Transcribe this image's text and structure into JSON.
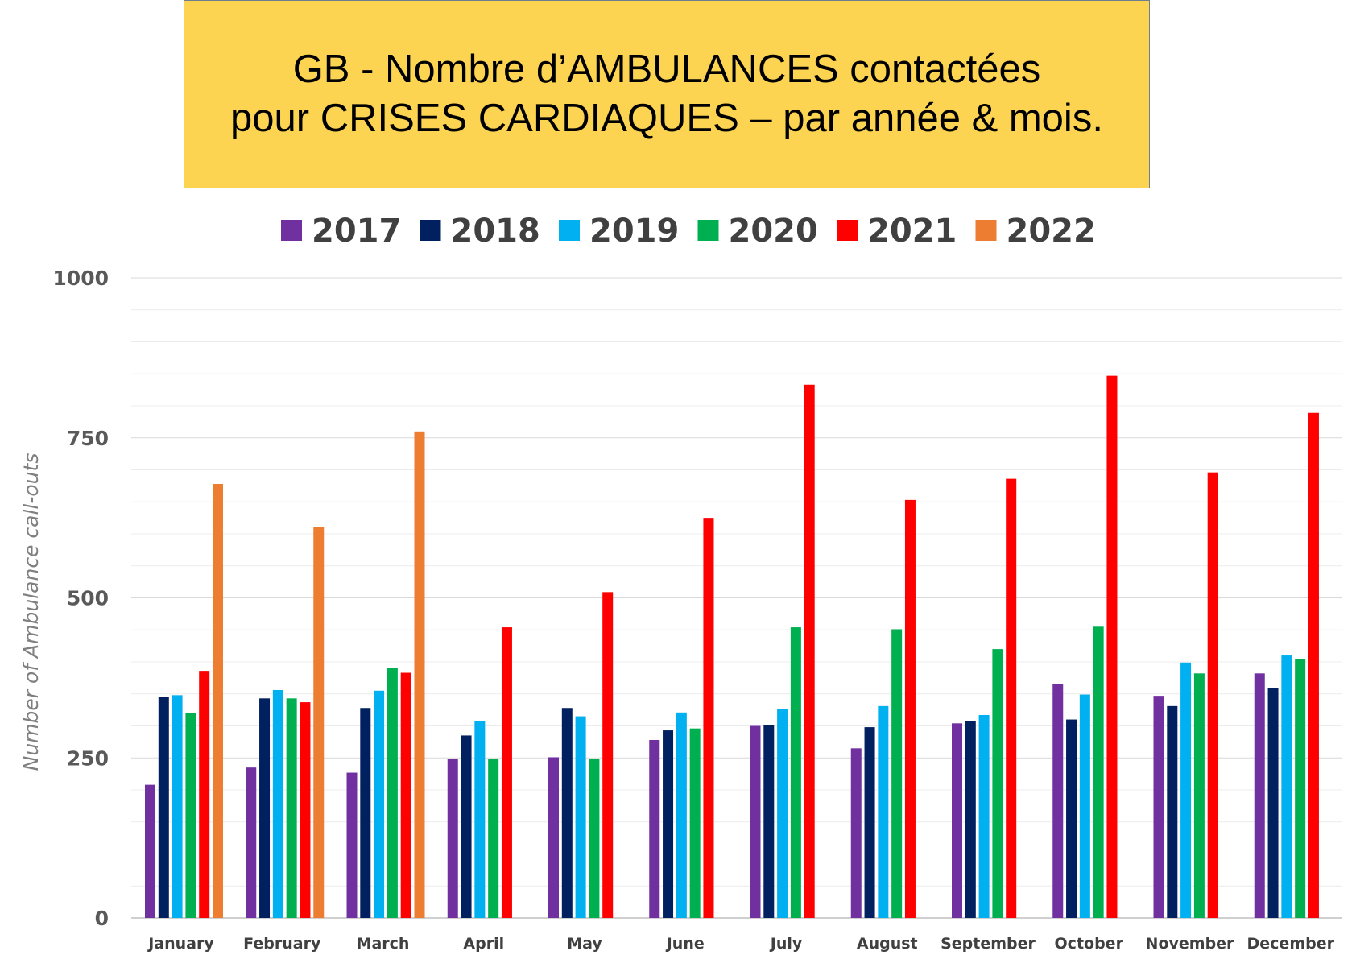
{
  "title": {
    "line1": "GB - Nombre d’AMBULANCES contactées",
    "line2": "pour CRISES CARDIAQUES – par année & mois."
  },
  "chart_data": {
    "type": "bar",
    "ylabel": "Number of Ambulance call-outs",
    "xlabel": "",
    "ylim": [
      0,
      1000
    ],
    "yticks": [
      0,
      250,
      500,
      750,
      1000
    ],
    "grid": true,
    "legend_position": "top",
    "categories": [
      "January",
      "February",
      "March",
      "April",
      "May",
      "June",
      "July",
      "August",
      "September",
      "October",
      "November",
      "December"
    ],
    "series": [
      {
        "name": "2017",
        "color": "#7030a0",
        "values": [
          208,
          235,
          227,
          249,
          251,
          278,
          300,
          265,
          304,
          365,
          347,
          382
        ]
      },
      {
        "name": "2018",
        "color": "#002060",
        "values": [
          345,
          343,
          328,
          285,
          328,
          293,
          301,
          298,
          308,
          310,
          331,
          359
        ]
      },
      {
        "name": "2019",
        "color": "#00b0f0",
        "values": [
          348,
          356,
          355,
          307,
          315,
          321,
          327,
          331,
          317,
          349,
          399,
          410
        ]
      },
      {
        "name": "2020",
        "color": "#00b050",
        "values": [
          320,
          343,
          390,
          249,
          249,
          296,
          454,
          451,
          420,
          455,
          382,
          405
        ]
      },
      {
        "name": "2021",
        "color": "#ff0000",
        "values": [
          386,
          337,
          383,
          454,
          509,
          625,
          833,
          653,
          686,
          847,
          696,
          789
        ]
      },
      {
        "name": "2022",
        "color": "#ed7d31",
        "values": [
          678,
          611,
          760,
          null,
          null,
          null,
          null,
          null,
          null,
          null,
          null,
          null
        ]
      }
    ]
  }
}
